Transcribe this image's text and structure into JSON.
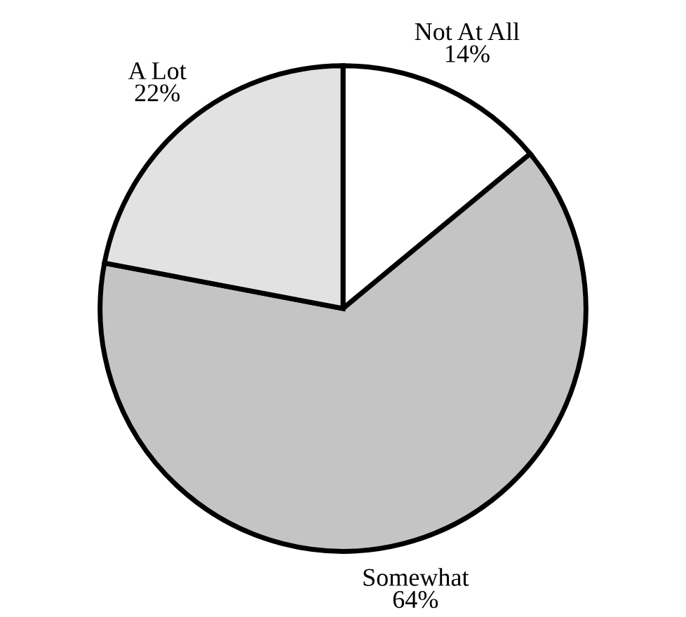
{
  "chart_data": {
    "type": "pie",
    "categories": [
      "Not At All",
      "Somewhat",
      "A Lot"
    ],
    "values": [
      14,
      64,
      22
    ],
    "value_labels": [
      "14%",
      "64%",
      "22%"
    ],
    "colors": [
      "#ffffff",
      "#c4c4c4",
      "#e2e2e2"
    ]
  }
}
